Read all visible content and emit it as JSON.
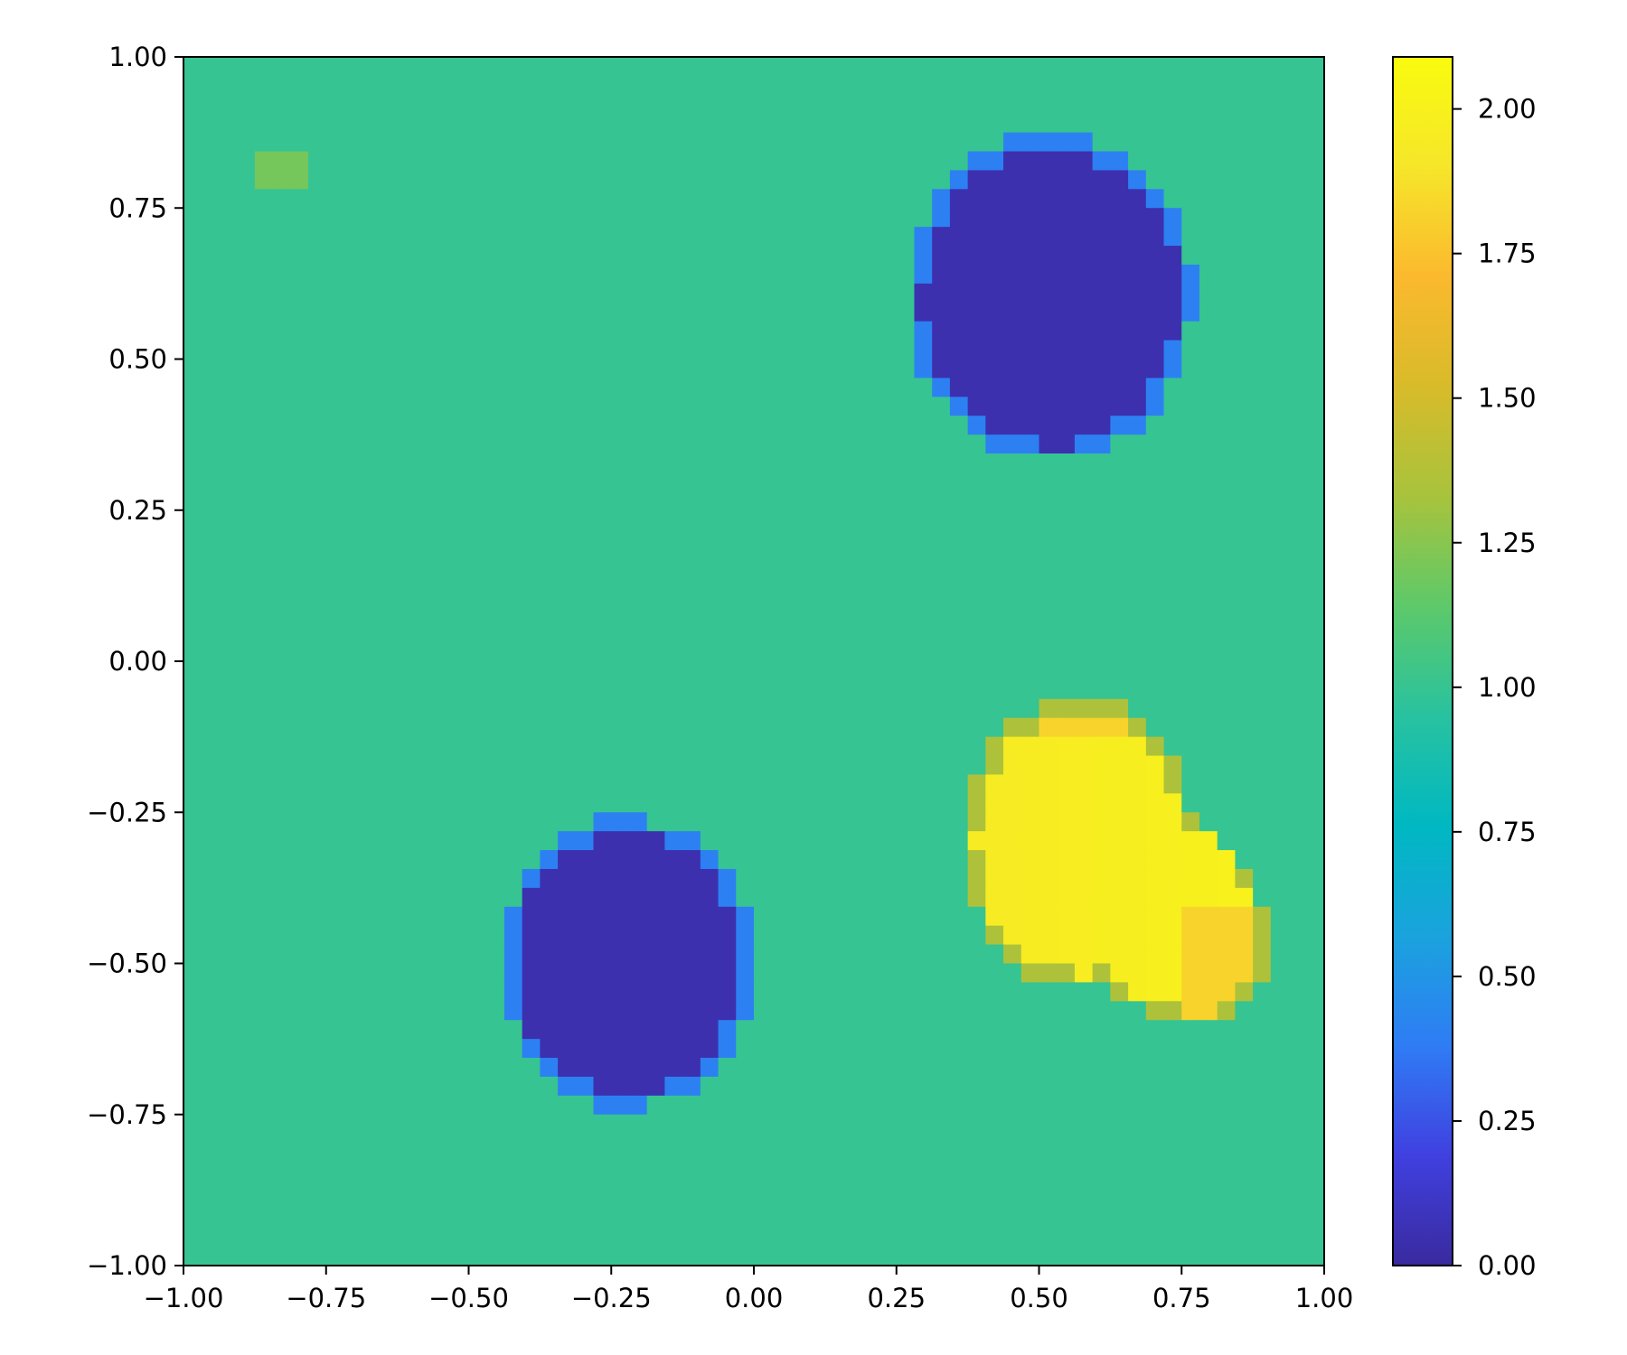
{
  "chart_data": {
    "type": "heatmap",
    "title": "",
    "xlabel": "",
    "ylabel": "",
    "xlim": [
      -1.0,
      1.0
    ],
    "ylim": [
      -1.0,
      1.0
    ],
    "grid": false,
    "xticks": [
      "−1.00",
      "−0.75",
      "−0.50",
      "−0.25",
      "0.00",
      "0.25",
      "0.50",
      "0.75",
      "1.00"
    ],
    "xtick_values": [
      -1.0,
      -0.75,
      -0.5,
      -0.25,
      0.0,
      0.25,
      0.5,
      0.75,
      1.0
    ],
    "yticks": [
      "1.00",
      "0.75",
      "0.50",
      "0.25",
      "0.00",
      "−0.25",
      "−0.50",
      "−0.75",
      "−1.00"
    ],
    "ytick_values": [
      1.0,
      0.75,
      0.5,
      0.25,
      0.0,
      -0.25,
      -0.5,
      -0.75,
      -1.0
    ],
    "grid_resolution": [
      64,
      64
    ],
    "background_value": 1.0,
    "features": [
      {
        "name": "disk-upper-right",
        "center": [
          0.52,
          0.6
        ],
        "radius": [
          0.25,
          0.27
        ],
        "value": 0.05,
        "edge_value": 0.4
      },
      {
        "name": "disk-lower-left",
        "center": [
          -0.22,
          -0.5
        ],
        "radius": [
          0.22,
          0.24
        ],
        "value": 0.05,
        "edge_value": 0.4
      },
      {
        "name": "blob-lower-right",
        "center": [
          0.62,
          -0.35
        ],
        "value": 1.95,
        "edge_value": 1.35,
        "peak_value": 2.08
      }
    ],
    "small_patch": {
      "x": -0.83,
      "y": 0.8,
      "value": 1.2
    },
    "colorbar": {
      "range": [
        0.0,
        2.09
      ],
      "ticks": [
        "0.00",
        "0.25",
        "0.50",
        "0.75",
        "1.00",
        "1.25",
        "1.50",
        "1.75",
        "2.00"
      ],
      "tick_values": [
        0.0,
        0.25,
        0.5,
        0.75,
        1.0,
        1.25,
        1.5,
        1.75,
        2.0
      ],
      "colors": [
        "#3a2a9e",
        "#4040e0",
        "#2f7cf5",
        "#1aa3dd",
        "#00b8c2",
        "#28c2a0",
        "#5dc96a",
        "#a8c33c",
        "#d8bb2a",
        "#fbb92e",
        "#f6e62a",
        "#f9fb0e"
      ]
    }
  }
}
